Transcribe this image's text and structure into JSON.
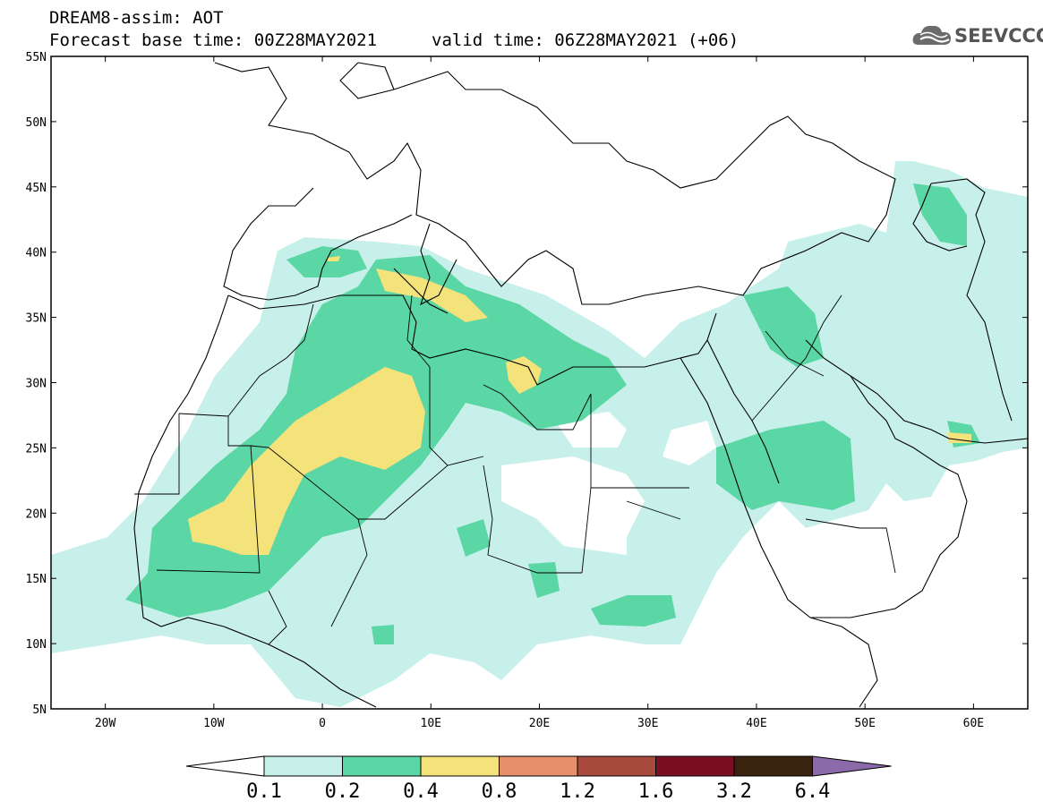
{
  "header": {
    "title_line1": "DREAM8-assim: AOT",
    "title_line2": "Forecast base time: 00Z28MAY2021",
    "valid_time": "valid time: 06Z28MAY2021 (+06)",
    "logo_text": "SEEVCCC"
  },
  "map": {
    "lon_range": [
      -25,
      65
    ],
    "lat_range": [
      5,
      55
    ],
    "lat_labels": [
      "5N",
      "10N",
      "15N",
      "20N",
      "25N",
      "30N",
      "35N",
      "40N",
      "45N",
      "50N",
      "55N"
    ],
    "lon_labels": [
      "20W",
      "10W",
      "0",
      "10E",
      "20E",
      "30E",
      "40E",
      "50E",
      "60E"
    ]
  },
  "colorbar": {
    "labels": [
      "0.1",
      "0.2",
      "0.4",
      "0.8",
      "1.2",
      "1.6",
      "3.2",
      "6.4"
    ],
    "colors": [
      "#ffffff",
      "#c8f0ea",
      "#5bd6a5",
      "#f4e27a",
      "#e8906a",
      "#a84b3c",
      "#7a0f24",
      "#3a2410",
      "#8a6aa8"
    ]
  },
  "colors": {
    "level_0_1": "#c8f0ea",
    "level_0_2": "#5bd6a5",
    "level_0_4": "#f4e27a"
  }
}
